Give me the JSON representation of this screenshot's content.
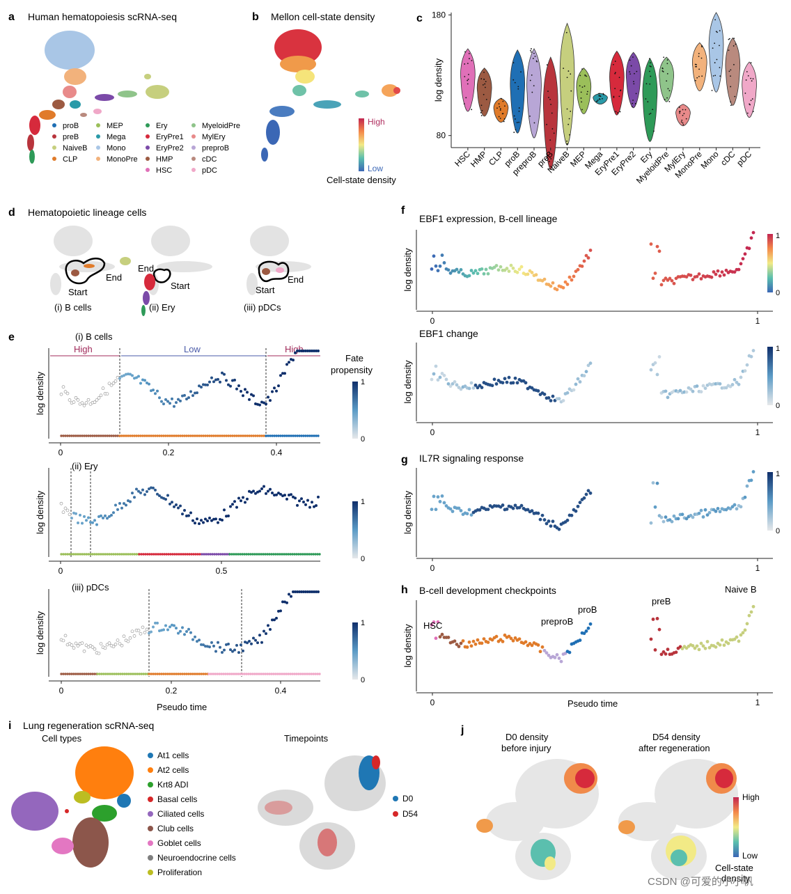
{
  "panels": {
    "a": {
      "letter": "a",
      "title": "Human hematopoiesis scRNA-seq",
      "legend": [
        {
          "label": "proB",
          "color": "#1f6fb4"
        },
        {
          "label": "preB",
          "color": "#b8343c"
        },
        {
          "label": "NaiveB",
          "color": "#c6cf7e"
        },
        {
          "label": "CLP",
          "color": "#e07b2a"
        },
        {
          "label": "MEP",
          "color": "#9bbf5a"
        },
        {
          "label": "Mega",
          "color": "#2a9aa8"
        },
        {
          "label": "Mono",
          "color": "#a9c6e6"
        },
        {
          "label": "MonoPre",
          "color": "#f2b27c"
        },
        {
          "label": "Ery",
          "color": "#2e9a58"
        },
        {
          "label": "EryPre1",
          "color": "#d62a3c"
        },
        {
          "label": "EryPre2",
          "color": "#7b4aa8"
        },
        {
          "label": "HMP",
          "color": "#9c5a42"
        },
        {
          "label": "HSC",
          "color": "#e070b8"
        },
        {
          "label": "MyeloidPre",
          "color": "#8fc48a"
        },
        {
          "label": "MylEry",
          "color": "#e88a8a"
        },
        {
          "label": "preproB",
          "color": "#b8a6d6"
        },
        {
          "label": "cDC",
          "color": "#b98a7e"
        },
        {
          "label": "pDC",
          "color": "#f0a8c8"
        }
      ]
    },
    "b": {
      "letter": "b",
      "title": "Mellon cell-state density",
      "high": "High",
      "low": "Low",
      "cbar_title": "Cell-state density"
    },
    "c": {
      "letter": "c"
    },
    "d": {
      "letter": "d",
      "title": "Hematopoietic lineage cells",
      "subs": [
        {
          "label": "(i) B cells",
          "start": "Start",
          "end": "End"
        },
        {
          "label": "(ii) Ery",
          "start": "Start",
          "end": "End"
        },
        {
          "label": "(iii) pDCs",
          "start": "Start",
          "end": "End"
        }
      ]
    },
    "e": {
      "letter": "e",
      "title": "(i) B cells",
      "band_high_left": "High",
      "band_low": "Low",
      "band_high_right": "High",
      "fate_title_1": "Fate",
      "fate_title_2": "propensity",
      "cbar_max": "1",
      "cbar_min": "0",
      "sub2": "(ii) Ery",
      "sub3": "(iii) pDCs",
      "ylabel": "log density",
      "xlabel": "Pseudo time",
      "ticks1": [
        "0",
        "0.2",
        "0.4"
      ],
      "ticks2": [
        "0",
        "0.5"
      ],
      "ticks3": [
        "0",
        "0.2",
        "0.4"
      ]
    },
    "f": {
      "letter": "f",
      "title": "EBF1 expression, B-cell lineage",
      "sub2": "EBF1 change",
      "ylabel": "log density",
      "cbar_max": "1",
      "cbar_min": "0",
      "x0": "0",
      "x1": "1"
    },
    "g": {
      "letter": "g",
      "title": "IL7R signaling response",
      "ylabel": "log density",
      "cbar_max": "1",
      "cbar_min": "0",
      "x0": "0",
      "x1": "1"
    },
    "h": {
      "letter": "h",
      "title": "B-cell development checkpoints",
      "ylabel": "log density",
      "xlabel": "Pseudo time",
      "x0": "0",
      "x1": "1",
      "labels": {
        "hsc": "HSC",
        "preprob": "preproB",
        "prob": "proB",
        "preb": "preB",
        "naiveb": "Naive B"
      }
    },
    "i": {
      "letter": "i",
      "title": "Lung regeneration scRNA-seq",
      "cell_types_title": "Cell types",
      "timepoints_title": "Timepoints",
      "legend": [
        {
          "label": "At1 cells",
          "color": "#1f77b4"
        },
        {
          "label": "At2 cells",
          "color": "#ff7f0e"
        },
        {
          "label": "Krt8 ADI",
          "color": "#2ca02c"
        },
        {
          "label": "Basal cells",
          "color": "#d62728"
        },
        {
          "label": "Ciliated cells",
          "color": "#9467bd"
        },
        {
          "label": "Club cells",
          "color": "#8c564b"
        },
        {
          "label": "Goblet cells",
          "color": "#e377c2"
        },
        {
          "label": "Neuroendocrine cells",
          "color": "#7f7f7f"
        },
        {
          "label": "Proliferation",
          "color": "#bcbd22"
        }
      ],
      "timepoints": [
        {
          "label": "D0",
          "color": "#1f77b4"
        },
        {
          "label": "D54",
          "color": "#d62728"
        }
      ]
    },
    "j": {
      "letter": "j",
      "d0_line1": "D0 density",
      "d0_line2": "before injury",
      "d54_line1": "D54 density",
      "d54_line2": "after regeneration",
      "high": "High",
      "low": "Low",
      "cbar_line1": "Cell-state",
      "cbar_line2": "density"
    }
  },
  "watermark": "CSDN @可爱的小小帆",
  "chart_data": [
    {
      "panel": "c",
      "type": "violin",
      "title": "",
      "ylabel": "log density",
      "ylim": [
        70,
        182
      ],
      "yticks": [
        80,
        180
      ],
      "categories": [
        "HSC",
        "HMP",
        "CLP",
        "proB",
        "preproB",
        "preB",
        "NaiveB",
        "MEP",
        "Mega",
        "EryPre1",
        "EryPre2",
        "Ery",
        "MyeloidPre",
        "MylEry",
        "MonoPre",
        "Mono",
        "cDC",
        "pDC"
      ],
      "colors": [
        "#e070b8",
        "#9c5a42",
        "#e07b2a",
        "#1f6fb4",
        "#b8a6d6",
        "#b8343c",
        "#c6cf7e",
        "#9bbf5a",
        "#2a9aa8",
        "#d62a3c",
        "#7b4aa8",
        "#2e9a58",
        "#8fc48a",
        "#e88a8a",
        "#f2b27c",
        "#a9c6e6",
        "#b98a7e",
        "#f0a8c8"
      ],
      "ranges": [
        [
          100,
          152
        ],
        [
          96,
          136
        ],
        [
          91,
          111
        ],
        [
          82,
          151
        ],
        [
          78,
          152
        ],
        [
          52,
          145
        ],
        [
          72,
          173
        ],
        [
          98,
          136
        ],
        [
          106,
          115
        ],
        [
          97,
          150
        ],
        [
          103,
          149
        ],
        [
          75,
          144
        ],
        [
          108,
          145
        ],
        [
          88,
          106
        ],
        [
          117,
          157
        ],
        [
          116,
          182
        ],
        [
          105,
          161
        ],
        [
          95,
          141
        ]
      ]
    }
  ]
}
